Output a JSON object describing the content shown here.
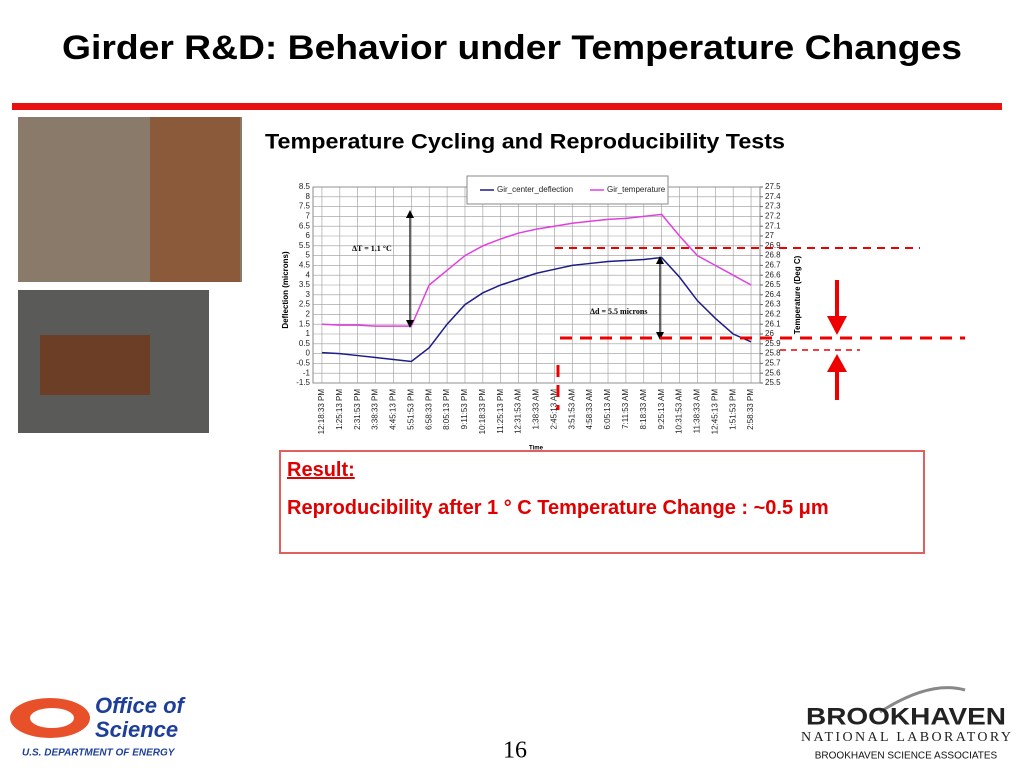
{
  "title": "Girder R&D: Behavior under Temperature Changes",
  "subtitle": "Temperature Cycling and Reproducibility Tests",
  "chart_data": {
    "type": "line",
    "categories": [
      "12:18:33 PM",
      "1:25:13 PM",
      "2:31:53 PM",
      "3:38:33 PM",
      "4:45:13 PM",
      "5:51:53 PM",
      "6:58:33 PM",
      "8:05:13 PM",
      "9:11:53 PM",
      "10:18:33 PM",
      "11:25:13 PM",
      "12:31:53 AM",
      "1:38:33 AM",
      "2:45:13 AM",
      "3:51:53 AM",
      "4:58:33 AM",
      "6:05:13 AM",
      "7:11:53 AM",
      "8:18:33 AM",
      "9:25:13 AM",
      "10:31:53 AM",
      "11:38:33 AM",
      "12:45:13 PM",
      "1:51:53 PM",
      "2:58:33 PM"
    ],
    "series": [
      {
        "name": "Gir_center_deflection",
        "color": "#1c1c8a",
        "values": [
          0.05,
          0,
          -0.1,
          -0.2,
          -0.3,
          -0.4,
          0.3,
          1.5,
          2.5,
          3.1,
          3.5,
          3.8,
          4.1,
          4.3,
          4.5,
          4.6,
          4.7,
          4.75,
          4.8,
          4.9,
          3.9,
          2.7,
          1.8,
          1.0,
          0.6
        ]
      },
      {
        "name": "Gir_temperature",
        "color": "#e040e0",
        "axis": "y2",
        "values": [
          26.1,
          26.09,
          26.09,
          26.08,
          26.08,
          26.08,
          26.5,
          26.65,
          26.8,
          26.9,
          26.97,
          27.03,
          27.07,
          27.1,
          27.13,
          27.15,
          27.17,
          27.18,
          27.2,
          27.22,
          27.0,
          26.8,
          26.7,
          26.6,
          26.5
        ]
      }
    ],
    "x_label": "Time",
    "y_label": "Deflection (microns)",
    "y2_label": "Temperature (Deg C)",
    "ylim": [
      -1.5,
      8.5
    ],
    "yticks": [
      -1.5,
      -1,
      -0.5,
      0,
      0.5,
      1,
      1.5,
      2,
      2.5,
      3,
      3.5,
      4,
      4.5,
      5,
      5.5,
      6,
      6.5,
      7,
      7.5,
      8,
      8.5
    ],
    "y2lim": [
      25.5,
      27.5
    ],
    "y2ticks": [
      25.5,
      25.6,
      25.7,
      25.8,
      25.9,
      26,
      26.1,
      26.2,
      26.3,
      26.4,
      26.5,
      26.6,
      26.7,
      26.8,
      26.9,
      27,
      27.1,
      27.2,
      27.3,
      27.4,
      27.5
    ],
    "grid": true,
    "legend": "top",
    "annotations": [
      "ΔT = 1.1 °C",
      "Δd = 5.5 microns"
    ]
  },
  "result": {
    "heading": "Result:",
    "text": "Reproducibility after 1 ° C Temperature Change : ~0.5 μm"
  },
  "page_number": "16",
  "footer": {
    "doe": [
      "Office of",
      "Science",
      "U.S. DEPARTMENT OF ENERGY"
    ],
    "bnl": [
      "BROOKHAVEN",
      "NATIONAL LABORATORY",
      "BROOKHAVEN SCIENCE ASSOCIATES"
    ]
  }
}
